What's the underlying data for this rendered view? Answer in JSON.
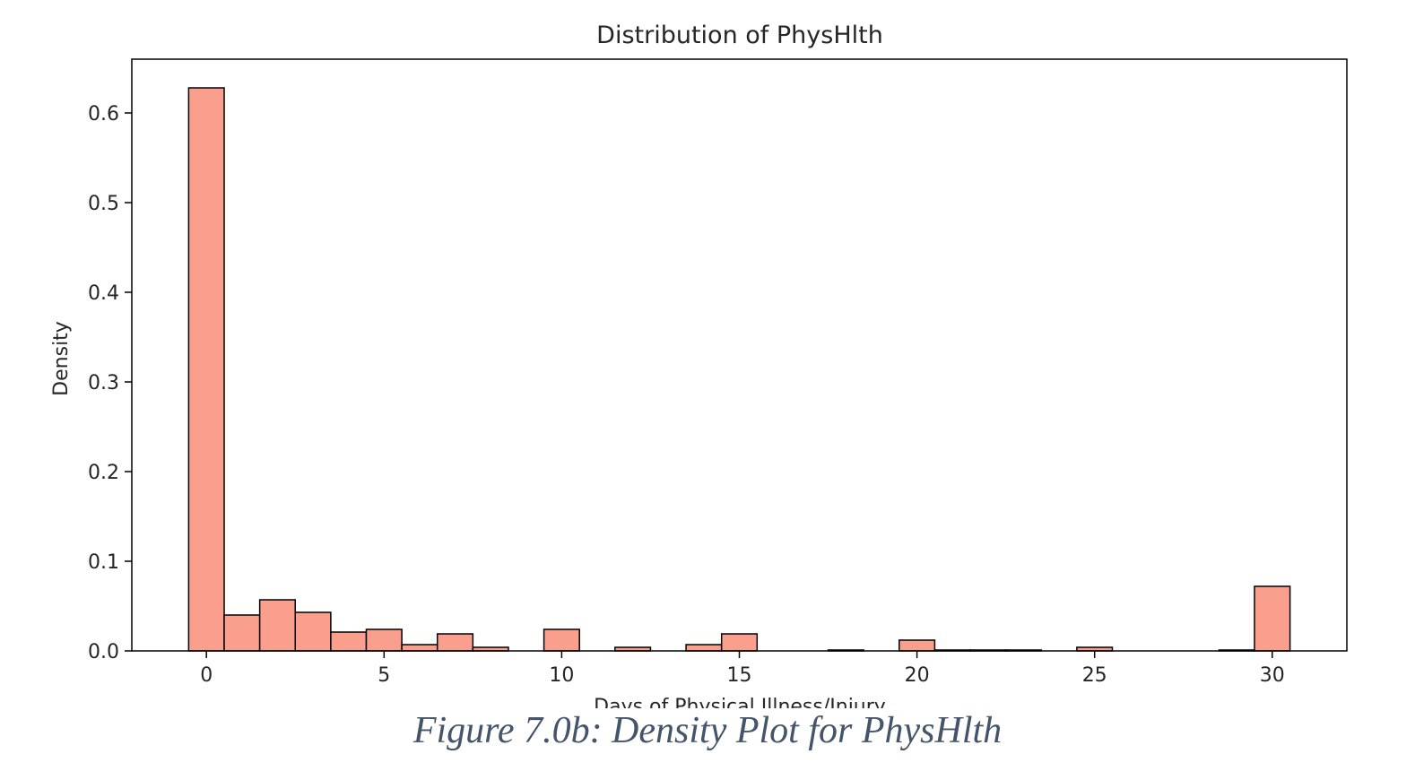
{
  "chart_data": {
    "type": "bar",
    "title": "Distribution of PhysHlth",
    "xlabel": "Days of Physical Illness/Injury",
    "ylabel": "Density",
    "xlim": [
      -2.1,
      32.1
    ],
    "ylim": [
      0,
      0.66
    ],
    "xticks": [
      0,
      5,
      10,
      15,
      20,
      25,
      30
    ],
    "yticks": [
      0.0,
      0.1,
      0.2,
      0.3,
      0.4,
      0.5,
      0.6
    ],
    "ytick_labels": [
      "0.0",
      "0.1",
      "0.2",
      "0.3",
      "0.4",
      "0.5",
      "0.6"
    ],
    "bin_width": 1.0,
    "bins": [
      {
        "x0": -0.5,
        "x1": 0.5,
        "value": 0.628
      },
      {
        "x0": 0.5,
        "x1": 1.5,
        "value": 0.04
      },
      {
        "x0": 1.5,
        "x1": 2.5,
        "value": 0.057
      },
      {
        "x0": 2.5,
        "x1": 3.5,
        "value": 0.043
      },
      {
        "x0": 3.5,
        "x1": 4.5,
        "value": 0.021
      },
      {
        "x0": 4.5,
        "x1": 5.5,
        "value": 0.024
      },
      {
        "x0": 5.5,
        "x1": 6.5,
        "value": 0.007
      },
      {
        "x0": 6.5,
        "x1": 7.5,
        "value": 0.019
      },
      {
        "x0": 7.5,
        "x1": 8.5,
        "value": 0.004
      },
      {
        "x0": 9.5,
        "x1": 10.5,
        "value": 0.024
      },
      {
        "x0": 11.5,
        "x1": 12.5,
        "value": 0.004
      },
      {
        "x0": 13.5,
        "x1": 14.5,
        "value": 0.007
      },
      {
        "x0": 14.5,
        "x1": 15.5,
        "value": 0.019
      },
      {
        "x0": 17.5,
        "x1": 18.5,
        "value": 0.001
      },
      {
        "x0": 19.5,
        "x1": 20.5,
        "value": 0.012
      },
      {
        "x0": 20.5,
        "x1": 21.5,
        "value": 0.001
      },
      {
        "x0": 21.5,
        "x1": 22.5,
        "value": 0.001
      },
      {
        "x0": 22.5,
        "x1": 23.5,
        "value": 0.001
      },
      {
        "x0": 24.5,
        "x1": 25.5,
        "value": 0.004
      },
      {
        "x0": 28.5,
        "x1": 29.5,
        "value": 0.001
      },
      {
        "x0": 29.5,
        "x1": 30.5,
        "value": 0.072
      }
    ],
    "bar_color": "#fa9e8e",
    "edge_color": "#000000",
    "grid": false
  },
  "caption": "Figure 7.0b: Density Plot for PhysHlth"
}
